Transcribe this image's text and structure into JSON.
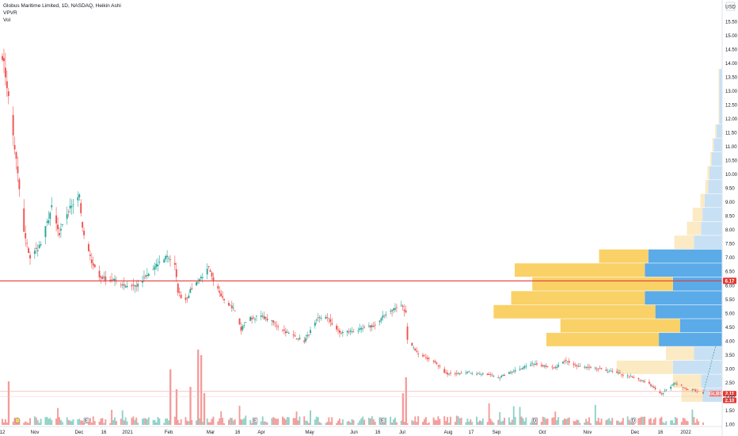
{
  "header": {
    "title": "Globus Maritime Limited, 1D, NASDAQ, Heikin Ashi",
    "indicator_1": "VPVR",
    "indicator_2": "Vol"
  },
  "currency": "USD",
  "current_price_label": "6.17",
  "ticker": {
    "symbol": "GLBS",
    "price": "2.11",
    "second_value": "2.10"
  },
  "colors": {
    "up": "#26a69a",
    "down": "#ef5350",
    "vol_up": "#8fd1c8",
    "vol_down": "#f49b99",
    "vpvr_up_hi": "#5aabe8",
    "vpvr_down_hi": "#f9d166",
    "vpvr_up_lo": "#c8e0f4",
    "vpvr_down_lo": "#fbeac3",
    "price_line": "#e53935"
  },
  "chart_data": {
    "type": "candlestick",
    "title": "Globus Maritime Limited, 1D, NASDAQ, Heikin Ashi",
    "y_axis": {
      "ticks": [
        "1.00",
        "1.50",
        "2.00",
        "2.50",
        "3.00",
        "3.50",
        "4.00",
        "4.50",
        "5.00",
        "5.50",
        "6.00",
        "6.50",
        "7.00",
        "7.50",
        "8.00",
        "8.50",
        "9.00",
        "9.50",
        "10.00",
        "10.50",
        "11.00",
        "11.50",
        "12.00",
        "12.50",
        "13.00",
        "13.50",
        "14.00",
        "14.50",
        "15.00",
        "15.50"
      ],
      "range": [
        1.0,
        15.6
      ]
    },
    "x_axis": {
      "ticks": [
        "12",
        "Nov",
        "Dec",
        "16",
        "2021",
        "Feb",
        "Mar",
        "16",
        "Apr",
        "May",
        "Jun",
        "16",
        "Jul",
        "Aug",
        "17",
        "Sep",
        "Oct",
        "Nov",
        "Dec",
        "16",
        "2022"
      ]
    },
    "horizontal_line": 6.17,
    "price_anchors": [
      {
        "date": "2020-10-12",
        "value": 14.3
      },
      {
        "date": "2020-10-15",
        "value": 13.2
      },
      {
        "date": "2020-10-21",
        "value": 10.5
      },
      {
        "date": "2020-10-26",
        "value": 7.9
      },
      {
        "date": "2020-10-30",
        "value": 7.0
      },
      {
        "date": "2020-11-06",
        "value": 7.5
      },
      {
        "date": "2020-11-13",
        "value": 8.8
      },
      {
        "date": "2020-11-18",
        "value": 7.8
      },
      {
        "date": "2020-11-23",
        "value": 8.6
      },
      {
        "date": "2020-11-27",
        "value": 9.0
      },
      {
        "date": "2020-12-01",
        "value": 9.3
      },
      {
        "date": "2020-12-03",
        "value": 8.0
      },
      {
        "date": "2020-12-08",
        "value": 7.0
      },
      {
        "date": "2020-12-14",
        "value": 6.3
      },
      {
        "date": "2020-12-23",
        "value": 6.2
      },
      {
        "date": "2020-12-31",
        "value": 6.0
      },
      {
        "date": "2021-01-08",
        "value": 6.0
      },
      {
        "date": "2021-01-18",
        "value": 6.6
      },
      {
        "date": "2021-01-27",
        "value": 7.1
      },
      {
        "date": "2021-02-01",
        "value": 6.7
      },
      {
        "date": "2021-02-03",
        "value": 5.8
      },
      {
        "date": "2021-02-07",
        "value": 5.4
      },
      {
        "date": "2021-02-12",
        "value": 5.9
      },
      {
        "date": "2021-02-18",
        "value": 6.3
      },
      {
        "date": "2021-02-23",
        "value": 6.6
      },
      {
        "date": "2021-02-26",
        "value": 6.1
      },
      {
        "date": "2021-03-04",
        "value": 5.6
      },
      {
        "date": "2021-03-12",
        "value": 5.1
      },
      {
        "date": "2021-03-16",
        "value": 4.4
      },
      {
        "date": "2021-03-20",
        "value": 4.8
      },
      {
        "date": "2021-03-29",
        "value": 4.9
      },
      {
        "date": "2021-04-05",
        "value": 4.7
      },
      {
        "date": "2021-04-15",
        "value": 4.3
      },
      {
        "date": "2021-04-26",
        "value": 4.0
      },
      {
        "date": "2021-05-05",
        "value": 4.8
      },
      {
        "date": "2021-05-10",
        "value": 4.9
      },
      {
        "date": "2021-05-19",
        "value": 4.3
      },
      {
        "date": "2021-06-01",
        "value": 4.4
      },
      {
        "date": "2021-06-12",
        "value": 4.6
      },
      {
        "date": "2021-06-18",
        "value": 5.0
      },
      {
        "date": "2021-06-28",
        "value": 5.3
      },
      {
        "date": "2021-07-01",
        "value": 5.0
      },
      {
        "date": "2021-07-02",
        "value": 4.1
      },
      {
        "date": "2021-07-08",
        "value": 3.6
      },
      {
        "date": "2021-07-18",
        "value": 3.3
      },
      {
        "date": "2021-07-28",
        "value": 2.8
      },
      {
        "date": "2021-08-08",
        "value": 2.9
      },
      {
        "date": "2021-08-22",
        "value": 2.8
      },
      {
        "date": "2021-08-31",
        "value": 2.7
      },
      {
        "date": "2021-09-12",
        "value": 3.0
      },
      {
        "date": "2021-09-22",
        "value": 3.2
      },
      {
        "date": "2021-10-01",
        "value": 3.1
      },
      {
        "date": "2021-10-05",
        "value": 3.0
      },
      {
        "date": "2021-10-13",
        "value": 3.3
      },
      {
        "date": "2021-10-20",
        "value": 3.1
      },
      {
        "date": "2021-11-02",
        "value": 3.0
      },
      {
        "date": "2021-11-12",
        "value": 2.9
      },
      {
        "date": "2021-11-25",
        "value": 2.7
      },
      {
        "date": "2021-12-05",
        "value": 2.5
      },
      {
        "date": "2021-12-14",
        "value": 2.1
      },
      {
        "date": "2021-12-23",
        "value": 2.5
      },
      {
        "date": "2021-12-30",
        "value": 2.3
      },
      {
        "date": "2022-01-06",
        "value": 2.2
      },
      {
        "date": "2022-01-10",
        "value": 2.11
      }
    ],
    "volume_spikes": [
      {
        "date": "2020-10-16",
        "value": 55
      },
      {
        "date": "2021-01-29",
        "value": 70
      },
      {
        "date": "2021-02-02",
        "value": 45
      },
      {
        "date": "2021-02-11",
        "value": 48
      },
      {
        "date": "2021-02-16",
        "value": 95
      },
      {
        "date": "2021-02-18",
        "value": 88
      },
      {
        "date": "2021-02-20",
        "value": 40
      },
      {
        "date": "2021-06-29",
        "value": 40
      },
      {
        "date": "2021-07-01",
        "value": 60
      }
    ],
    "vpvr_bins": [
      {
        "price_low": 1.8,
        "price_high": 2.3,
        "up": 28,
        "down": 30
      },
      {
        "price_low": 2.3,
        "price_high": 2.8,
        "up": 30,
        "down": 40
      },
      {
        "price_low": 2.8,
        "price_high": 3.3,
        "up": 70,
        "down": 80
      },
      {
        "price_low": 3.3,
        "price_high": 3.8,
        "up": 40,
        "down": 40
      },
      {
        "price_low": 3.8,
        "price_high": 4.3,
        "up": 90,
        "down": 160
      },
      {
        "price_low": 4.3,
        "price_high": 4.8,
        "up": 60,
        "down": 170
      },
      {
        "price_low": 4.8,
        "price_high": 5.3,
        "up": 95,
        "down": 230
      },
      {
        "price_low": 5.3,
        "price_high": 5.8,
        "up": 110,
        "down": 190
      },
      {
        "price_low": 5.8,
        "price_high": 6.3,
        "up": 70,
        "down": 200
      },
      {
        "price_low": 6.3,
        "price_high": 6.8,
        "up": 110,
        "down": 185
      },
      {
        "price_low": 6.8,
        "price_high": 7.3,
        "up": 105,
        "down": 70
      },
      {
        "price_low": 7.3,
        "price_high": 7.8,
        "up": 40,
        "down": 28
      },
      {
        "price_low": 7.8,
        "price_high": 8.3,
        "up": 30,
        "down": 20
      },
      {
        "price_low": 8.3,
        "price_high": 8.8,
        "up": 28,
        "down": 14
      },
      {
        "price_low": 8.8,
        "price_high": 9.3,
        "up": 25,
        "down": 6
      },
      {
        "price_low": 9.3,
        "price_high": 9.8,
        "up": 20,
        "down": 4
      },
      {
        "price_low": 9.8,
        "price_high": 10.3,
        "up": 18,
        "down": 3
      },
      {
        "price_low": 10.3,
        "price_high": 10.8,
        "up": 15,
        "down": 2
      },
      {
        "price_low": 10.8,
        "price_high": 11.3,
        "up": 12,
        "down": 2
      },
      {
        "price_low": 11.3,
        "price_high": 11.8,
        "up": 8,
        "down": 2
      },
      {
        "price_low": 11.8,
        "price_high": 13.8,
        "up": 4,
        "down": 1
      }
    ]
  }
}
